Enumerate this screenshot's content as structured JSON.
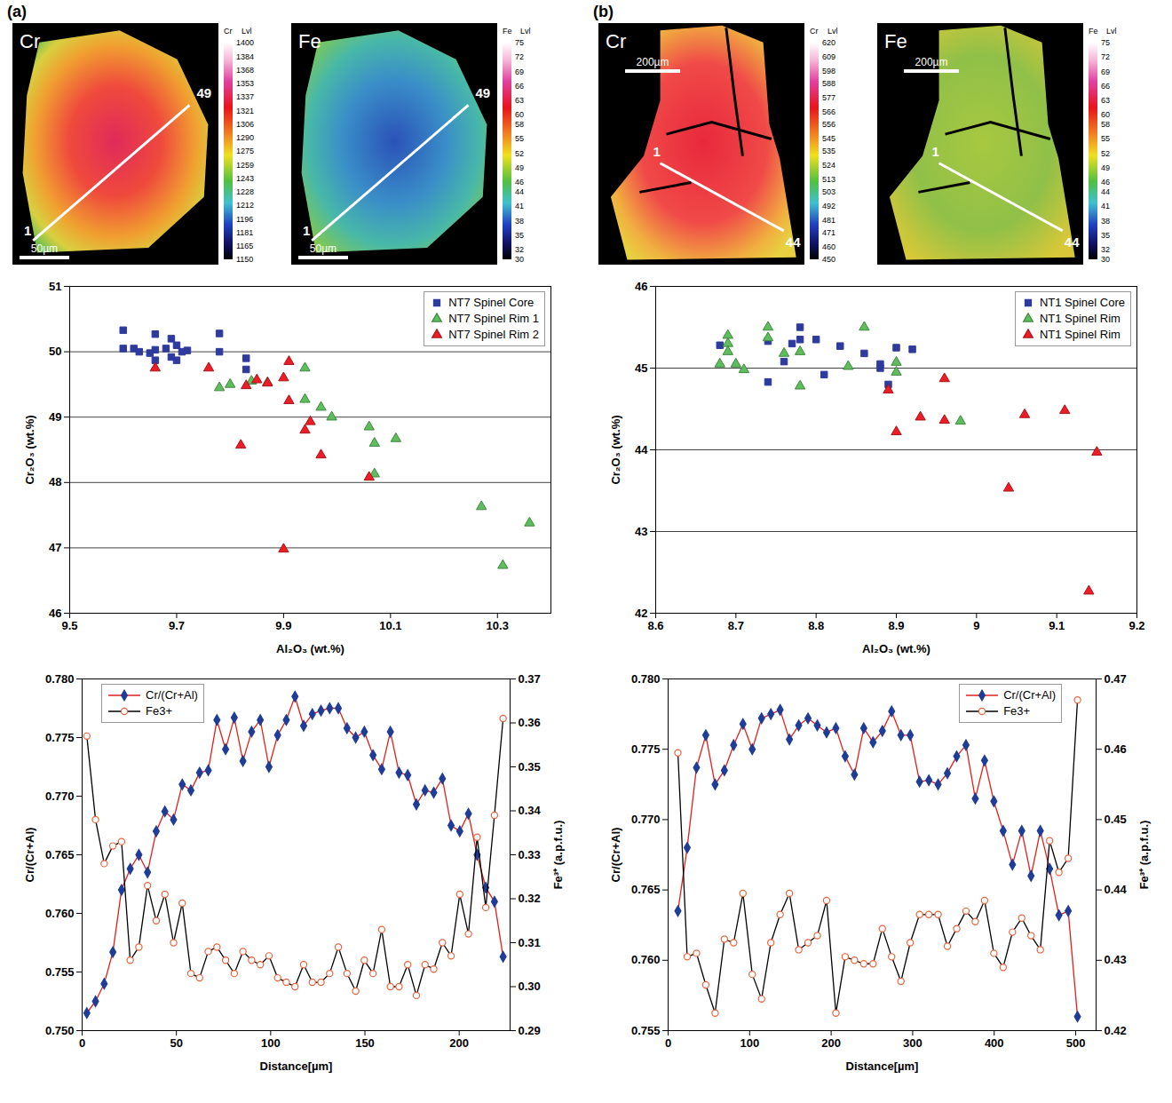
{
  "panels": [
    {
      "label": "(a)",
      "maps": [
        {
          "element": "Cr",
          "colorbar_header": [
            "Cr",
            "Lvl"
          ],
          "colorbar_ticks": [
            1400,
            1384,
            1368,
            1353,
            1337,
            1321,
            1306,
            1290,
            1275,
            1259,
            1243,
            1228,
            1212,
            1196,
            1181,
            1165,
            1150
          ],
          "scale_bar": "50µm",
          "traverse_start": "1",
          "traverse_end": "49"
        },
        {
          "element": "Fe",
          "colorbar_header": [
            "Fe",
            "Lvl"
          ],
          "colorbar_ticks": [
            75,
            72,
            69,
            66,
            63,
            60,
            58,
            55,
            52,
            49,
            46,
            44,
            41,
            38,
            35,
            32,
            30
          ],
          "scale_bar": "50µm",
          "traverse_start": "1",
          "traverse_end": "49"
        }
      ]
    },
    {
      "label": "(b)",
      "maps": [
        {
          "element": "Cr",
          "colorbar_header": [
            "Cr",
            "Lvl"
          ],
          "colorbar_ticks": [
            620,
            609,
            598,
            588,
            577,
            566,
            556,
            545,
            535,
            524,
            513,
            503,
            492,
            481,
            471,
            460,
            450
          ],
          "scale_bar": "200µm",
          "traverse_start": "1",
          "traverse_end": "44"
        },
        {
          "element": "Fe",
          "colorbar_header": [
            "Fe",
            "Lvl"
          ],
          "colorbar_ticks": [
            75,
            72,
            69,
            66,
            63,
            60,
            58,
            55,
            52,
            49,
            46,
            44,
            41,
            38,
            35,
            32,
            30
          ],
          "scale_bar": "200µm",
          "traverse_start": "1",
          "traverse_end": "44"
        }
      ]
    }
  ],
  "chart_data": [
    {
      "type": "scatter",
      "xlabel": "Al₂O₃ (wt.%)",
      "ylabel": "Cr₂O₃ (wt.%)",
      "xlim": [
        9.5,
        10.4
      ],
      "xticks": [
        9.5,
        9.7,
        9.9,
        10.1,
        10.3
      ],
      "ylim": [
        46,
        51
      ],
      "yticks": [
        46,
        47,
        48,
        49,
        50,
        51
      ],
      "grid": "y",
      "legend": "upper right",
      "series": [
        {
          "name": "NT7 Spinel Core",
          "color": "#2e3a9e",
          "marker": "square",
          "x": [
            9.6,
            9.6,
            9.62,
            9.63,
            9.65,
            9.66,
            9.66,
            9.66,
            9.68,
            9.69,
            9.69,
            9.7,
            9.7,
            9.71,
            9.72,
            9.78,
            9.78,
            9.83,
            9.83
          ],
          "values": [
            50.33,
            50.05,
            50.05,
            50.0,
            49.98,
            50.03,
            50.27,
            49.87,
            50.05,
            50.2,
            49.92,
            50.1,
            49.87,
            50.0,
            50.02,
            50.28,
            50.0,
            49.9,
            49.73
          ]
        },
        {
          "name": "NT7 Spinel Rim 1",
          "color": "#5cbf5c",
          "marker": "triangle",
          "x": [
            9.78,
            9.8,
            9.84,
            9.87,
            9.94,
            9.94,
            9.97,
            9.99,
            10.06,
            10.07,
            10.07,
            10.11,
            10.27,
            10.31,
            10.36
          ],
          "values": [
            49.45,
            49.5,
            49.55,
            49.53,
            49.75,
            49.27,
            49.15,
            49.0,
            48.85,
            48.6,
            48.13,
            48.67,
            47.63,
            46.73,
            47.38
          ]
        },
        {
          "name": "NT7 Spinel Rim 2",
          "color": "#ee1c25",
          "marker": "triangle",
          "x": [
            9.66,
            9.76,
            9.82,
            9.83,
            9.85,
            9.87,
            9.9,
            9.91,
            9.91,
            9.94,
            9.95,
            9.97,
            10.06,
            9.9
          ],
          "values": [
            49.75,
            49.75,
            48.57,
            49.48,
            49.57,
            49.52,
            49.6,
            49.85,
            49.25,
            48.8,
            48.93,
            48.42,
            48.08,
            46.98
          ]
        }
      ]
    },
    {
      "type": "line",
      "xlabel": "Distance[µm]",
      "ylabel": "Cr/(Cr+Al)",
      "y2label": "Fe³⁺ (a.p.f.u.)",
      "xlim": [
        0,
        227
      ],
      "xticks": [
        0,
        50,
        100,
        150,
        200
      ],
      "ylim": [
        0.75,
        0.78
      ],
      "yticks": [
        {
          "value": 0.75,
          "label": "0.750"
        },
        0.755,
        {
          "value": 0.76,
          "label": "0.760"
        },
        0.765,
        {
          "value": 0.77,
          "label": "0.770"
        },
        0.775,
        {
          "value": 0.78,
          "label": "0.780"
        }
      ],
      "y2lim": [
        0.29,
        0.37
      ],
      "y2ticks": [
        0.29,
        {
          "value": 0.3,
          "label": "0.30"
        },
        0.31,
        0.32,
        0.33,
        0.34,
        0.35,
        0.36,
        0.37
      ],
      "legend": "upper left",
      "x": [
        2.5,
        7.1,
        11.7,
        16.3,
        20.9,
        25.5,
        30.1,
        34.7,
        39.3,
        43.9,
        48.5,
        53.1,
        57.7,
        62.3,
        66.9,
        71.5,
        76.1,
        80.7,
        85.3,
        89.9,
        94.5,
        99.1,
        103.7,
        108.3,
        112.9,
        117.5,
        122.1,
        126.7,
        131.3,
        135.9,
        140.5,
        145.1,
        149.7,
        154.3,
        158.9,
        163.5,
        168.1,
        172.7,
        177.3,
        181.9,
        186.5,
        191.1,
        195.7,
        200.3,
        204.9,
        209.5,
        214.1,
        218.7,
        223.3
      ],
      "series": [
        {
          "name": "Cr/(Cr+Al)",
          "color": "#e0201b",
          "marker": "diamond",
          "values": [
            0.7515,
            0.7525,
            0.754,
            0.7567,
            0.762,
            0.7638,
            0.765,
            0.7635,
            0.767,
            0.7687,
            0.768,
            0.771,
            0.7705,
            0.772,
            0.7722,
            0.7765,
            0.774,
            0.7767,
            0.773,
            0.7755,
            0.7765,
            0.7725,
            0.7752,
            0.7765,
            0.7785,
            0.776,
            0.777,
            0.7773,
            0.7775,
            0.7775,
            0.7758,
            0.775,
            0.7755,
            0.7735,
            0.7723,
            0.7755,
            0.772,
            0.7718,
            0.7693,
            0.7705,
            0.7703,
            0.7715,
            0.7675,
            0.767,
            0.7685,
            0.765,
            0.7622,
            0.761,
            0.7563
          ]
        },
        {
          "name": "Fe3+",
          "color": "#000000",
          "marker": "circle",
          "axis": "y2",
          "values": [
            0.357,
            0.338,
            0.328,
            0.332,
            0.333,
            0.306,
            0.309,
            0.323,
            0.315,
            0.321,
            0.31,
            0.319,
            0.303,
            0.302,
            0.308,
            0.309,
            0.306,
            0.303,
            0.308,
            0.306,
            0.305,
            0.307,
            0.302,
            0.301,
            0.3,
            0.305,
            0.301,
            0.301,
            0.303,
            0.309,
            0.303,
            0.299,
            0.306,
            0.303,
            0.313,
            0.3,
            0.3,
            0.305,
            0.298,
            0.305,
            0.304,
            0.31,
            0.307,
            0.321,
            0.312,
            0.334,
            0.318,
            0.339,
            0.361
          ]
        }
      ]
    },
    {
      "type": "scatter",
      "xlabel": "Al₂O₃ (wt.%)",
      "ylabel": "Cr₂O₃ (wt.%)",
      "xlim": [
        8.6,
        9.2
      ],
      "xticks": [
        8.6,
        8.7,
        8.8,
        8.9,
        9,
        9.1,
        9.2
      ],
      "ylim": [
        42,
        46
      ],
      "yticks": [
        42,
        43,
        44,
        45,
        46
      ],
      "grid": "y",
      "legend": "upper right",
      "series": [
        {
          "name": "NT1 Spinel Core",
          "color": "#2e3a9e",
          "marker": "square",
          "x": [
            8.68,
            8.74,
            8.74,
            8.76,
            8.77,
            8.78,
            8.78,
            8.8,
            8.81,
            8.83,
            8.86,
            8.88,
            8.88,
            8.89,
            8.9,
            8.92
          ],
          "values": [
            45.28,
            45.33,
            44.83,
            45.08,
            45.3,
            45.5,
            45.35,
            45.35,
            44.92,
            45.27,
            45.18,
            45.05,
            45.0,
            44.8,
            45.25,
            45.23
          ]
        },
        {
          "name": "NT1 Spinel Rim",
          "color": "#5cbf5c",
          "marker": "triangle",
          "x": [
            8.68,
            8.69,
            8.69,
            8.69,
            8.7,
            8.71,
            8.74,
            8.74,
            8.76,
            8.78,
            8.78,
            8.84,
            8.86,
            8.9,
            8.9,
            8.98
          ],
          "values": [
            45.05,
            45.4,
            45.3,
            45.2,
            45.05,
            44.98,
            45.5,
            45.37,
            45.18,
            45.2,
            44.78,
            45.02,
            45.5,
            45.07,
            44.95,
            44.35
          ]
        },
        {
          "name": "NT1 Spinel Rim",
          "color": "#ee1c25",
          "marker": "triangle",
          "x": [
            8.89,
            8.9,
            8.93,
            8.96,
            8.96,
            9.04,
            9.06,
            9.11,
            9.14,
            9.15
          ],
          "values": [
            44.73,
            44.22,
            44.4,
            44.87,
            44.36,
            43.53,
            44.43,
            44.48,
            42.27,
            43.97
          ]
        }
      ]
    },
    {
      "type": "line",
      "xlabel": "Distance[µm]",
      "ylabel": "Cr/(Cr+Al)",
      "y2label": "Fe³⁺ (a.p.f.u.)",
      "xlim": [
        0,
        525
      ],
      "xticks": [
        0,
        100,
        200,
        300,
        400,
        500
      ],
      "ylim": [
        0.755,
        0.78
      ],
      "yticks": [
        0.755,
        {
          "value": 0.76,
          "label": "0.760"
        },
        0.765,
        {
          "value": 0.77,
          "label": "0.770"
        },
        0.775,
        {
          "value": 0.78,
          "label": "0.780"
        }
      ],
      "y2lim": [
        0.42,
        0.47
      ],
      "y2ticks": [
        0.42,
        0.43,
        0.44,
        0.45,
        0.46,
        0.47
      ],
      "legend": "upper right",
      "x": [
        12,
        23.4,
        34.8,
        46.2,
        57.6,
        69,
        80.4,
        91.8,
        103.2,
        114.6,
        126,
        137.4,
        148.8,
        160.2,
        171.6,
        183,
        194.4,
        205.8,
        217.2,
        228.6,
        240,
        251.4,
        262.8,
        274.2,
        285.6,
        297,
        308.4,
        319.8,
        331.2,
        342.6,
        354,
        365.4,
        376.8,
        388.2,
        399.6,
        411,
        422.4,
        433.8,
        445.2,
        456.6,
        468,
        479.4,
        490.8,
        502.2
      ],
      "series": [
        {
          "name": "Cr/(Cr+Al)",
          "color": "#e0201b",
          "marker": "diamond",
          "values": [
            0.7635,
            0.768,
            0.7737,
            0.776,
            0.7725,
            0.7735,
            0.7753,
            0.7768,
            0.775,
            0.7772,
            0.7775,
            0.7778,
            0.7757,
            0.7767,
            0.7772,
            0.7767,
            0.7762,
            0.7765,
            0.7745,
            0.7732,
            0.7765,
            0.7755,
            0.7763,
            0.7777,
            0.776,
            0.776,
            0.7727,
            0.7728,
            0.7725,
            0.7733,
            0.7745,
            0.7753,
            0.7715,
            0.7742,
            0.7713,
            0.7692,
            0.7668,
            0.7692,
            0.766,
            0.7692,
            0.7665,
            0.7632,
            0.7635,
            0.756
          ]
        },
        {
          "name": "Fe3+",
          "color": "#000000",
          "marker": "circle",
          "axis": "y2",
          "values": [
            0.4595,
            0.4305,
            0.431,
            0.4265,
            0.4225,
            0.433,
            0.4325,
            0.4395,
            0.428,
            0.4245,
            0.4325,
            0.4365,
            0.4395,
            0.4315,
            0.4325,
            0.4335,
            0.4385,
            0.4225,
            0.4305,
            0.43,
            0.4295,
            0.4295,
            0.4345,
            0.4305,
            0.427,
            0.4325,
            0.4365,
            0.4365,
            0.4365,
            0.432,
            0.4345,
            0.437,
            0.4355,
            0.4385,
            0.431,
            0.429,
            0.434,
            0.436,
            0.4335,
            0.4315,
            0.447,
            0.4425,
            0.4445,
            0.467
          ]
        }
      ]
    }
  ]
}
